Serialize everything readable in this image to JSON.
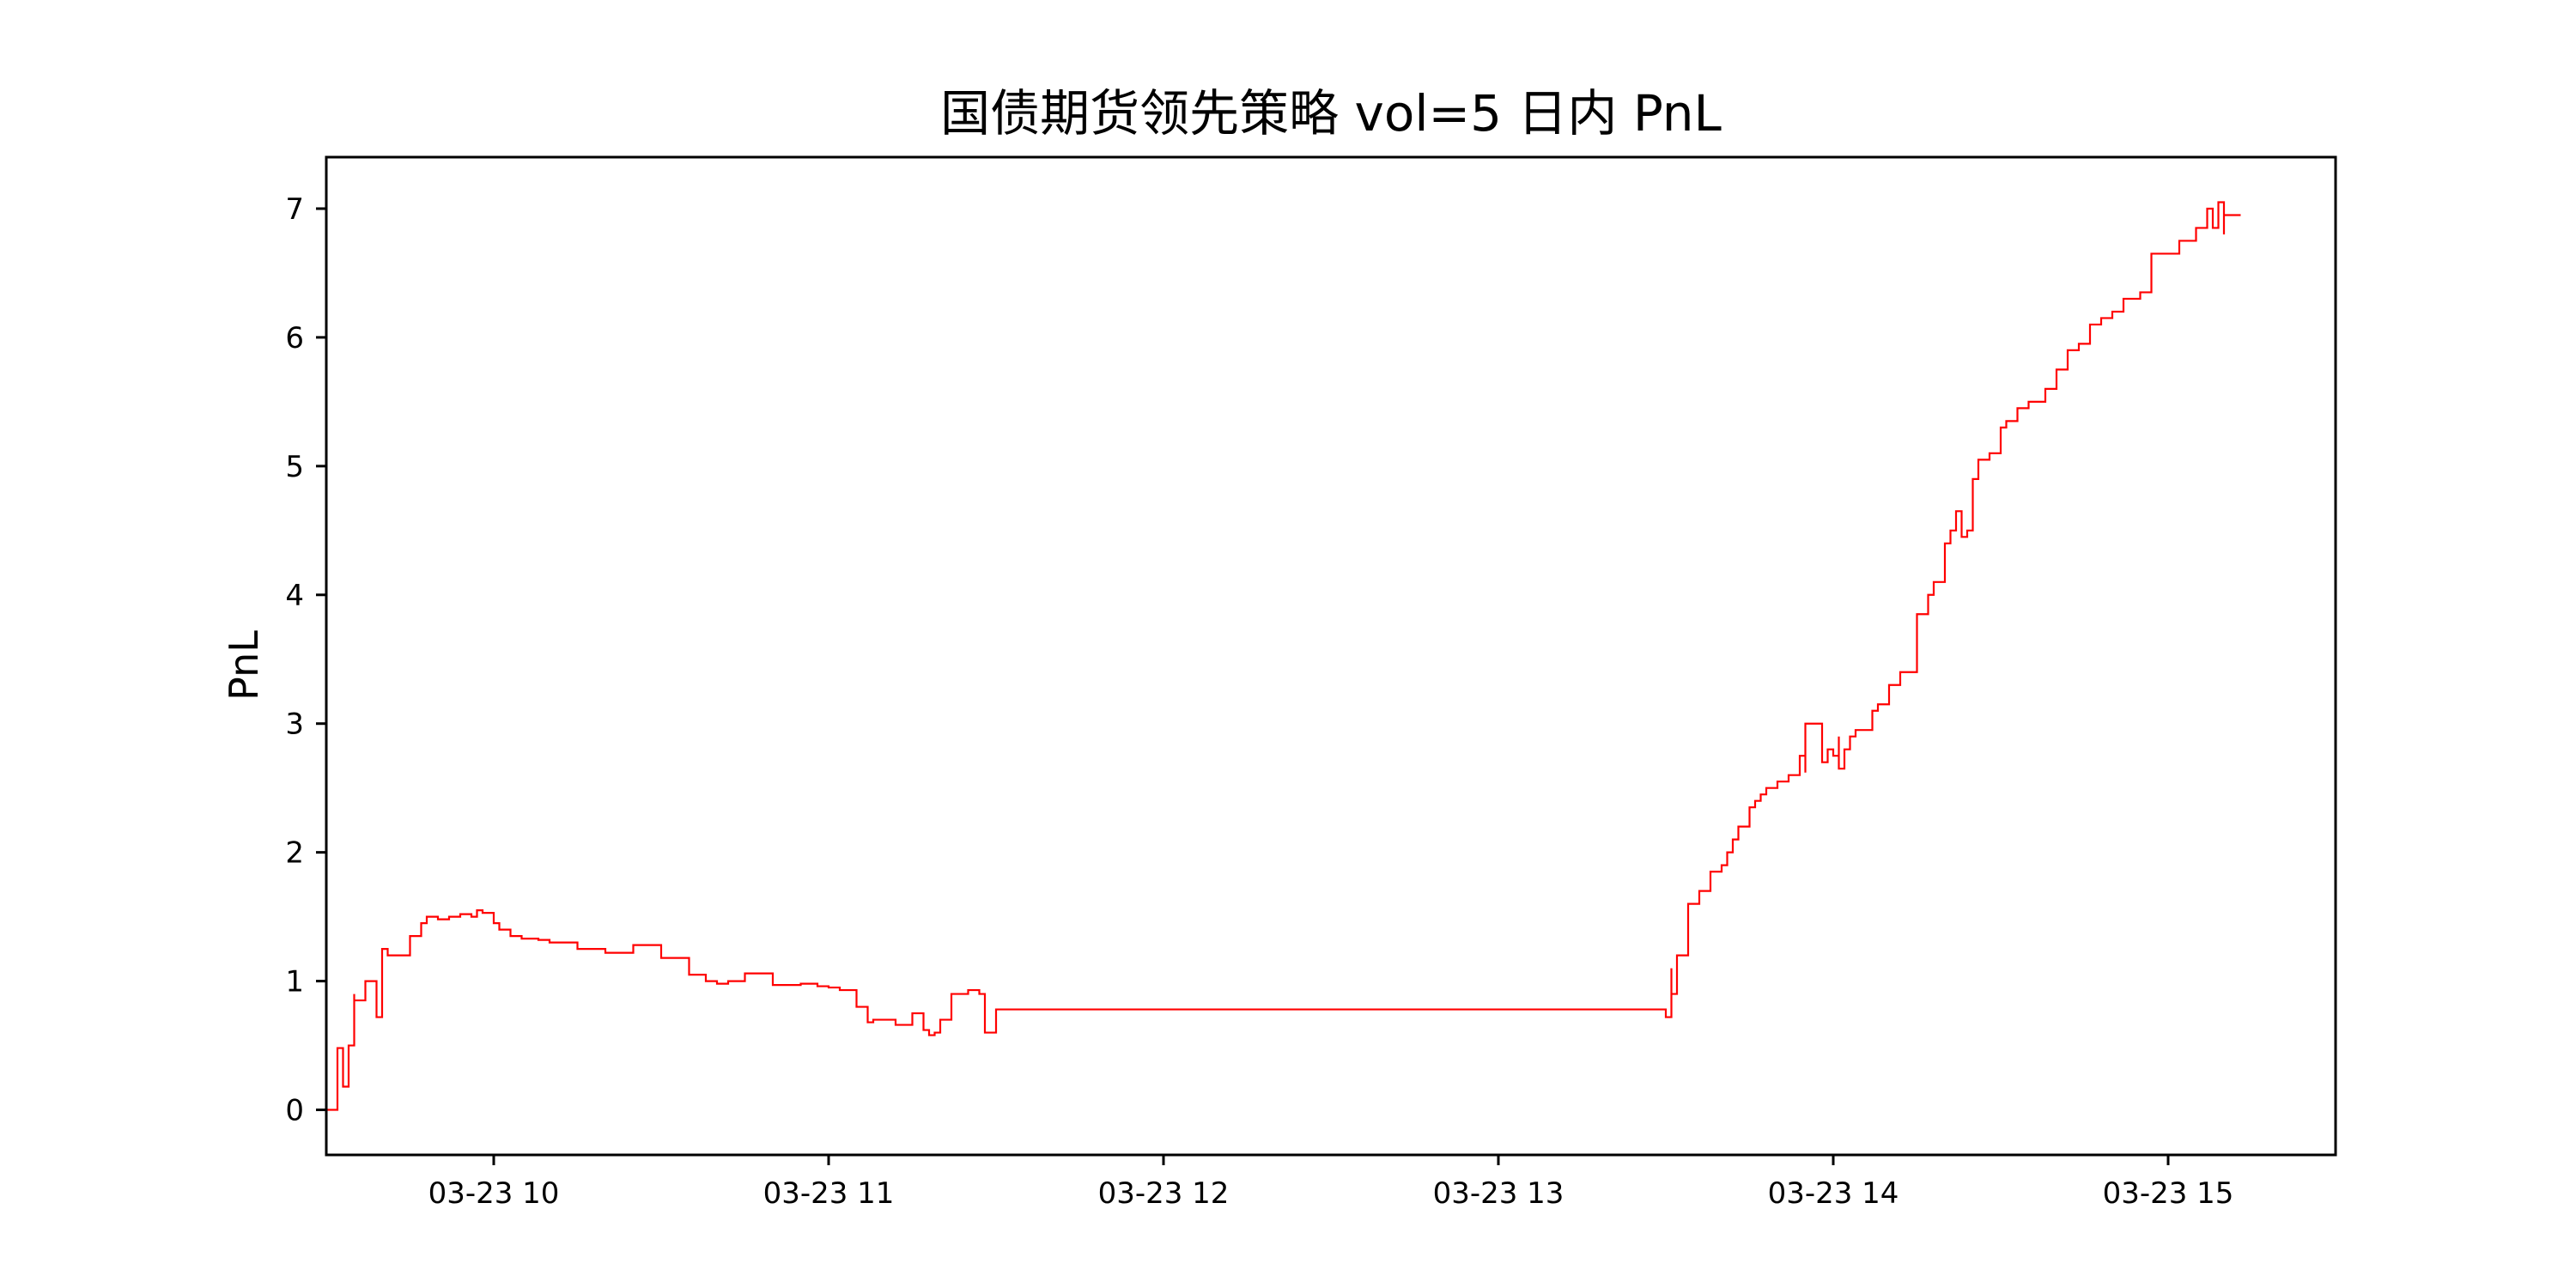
{
  "chart_data": {
    "type": "line",
    "title": "国债期货领先策略 vol=5 日内 PnL",
    "xlabel": "",
    "ylabel": "PnL",
    "x_type": "time",
    "x_date": "2020-03-23",
    "xlim": [
      "09:30",
      "15:30"
    ],
    "ylim": [
      -0.35,
      7.4
    ],
    "grid": false,
    "legend": "none",
    "x_ticks": [
      {
        "time": "10:00",
        "label": "03-23 10"
      },
      {
        "time": "11:00",
        "label": "03-23 11"
      },
      {
        "time": "12:00",
        "label": "03-23 12"
      },
      {
        "time": "13:00",
        "label": "03-23 13"
      },
      {
        "time": "14:00",
        "label": "03-23 14"
      },
      {
        "time": "15:00",
        "label": "03-23 15"
      }
    ],
    "y_ticks": [
      {
        "value": 0,
        "label": "0"
      },
      {
        "value": 1,
        "label": "1"
      },
      {
        "value": 2,
        "label": "2"
      },
      {
        "value": 3,
        "label": "3"
      },
      {
        "value": 4,
        "label": "4"
      },
      {
        "value": 5,
        "label": "5"
      },
      {
        "value": 6,
        "label": "6"
      },
      {
        "value": 7,
        "label": "7"
      }
    ],
    "series": [
      {
        "line_style": "step",
        "color": "#ff0000",
        "x": [
          "09:30",
          "09:32",
          "09:32",
          "09:33",
          "09:34",
          "09:35",
          "09:35",
          "09:36",
          "09:37",
          "09:38",
          "09:39",
          "09:40",
          "09:40",
          "09:41",
          "09:43",
          "09:45",
          "09:47",
          "09:48",
          "09:50",
          "09:52",
          "09:54",
          "09:56",
          "09:57",
          "09:58",
          "10:00",
          "10:01",
          "10:03",
          "10:05",
          "10:08",
          "10:10",
          "10:15",
          "10:20",
          "10:25",
          "10:30",
          "10:33",
          "10:35",
          "10:38",
          "10:40",
          "10:42",
          "10:45",
          "10:50",
          "10:55",
          "10:58",
          "11:00",
          "11:02",
          "11:05",
          "11:07",
          "11:08",
          "11:12",
          "11:15",
          "11:17",
          "11:18",
          "11:19",
          "11:20",
          "11:22",
          "11:25",
          "11:26",
          "11:27",
          "11:28",
          "11:30",
          "13:30",
          "13:30",
          "13:31",
          "13:31",
          "13:32",
          "13:34",
          "13:36",
          "13:38",
          "13:40",
          "13:41",
          "13:42",
          "13:43",
          "13:45",
          "13:46",
          "13:47",
          "13:48",
          "13:50",
          "13:52",
          "13:54",
          "13:55",
          "13:55",
          "13:58",
          "13:59",
          "14:00",
          "14:01",
          "14:01",
          "14:02",
          "14:03",
          "14:04",
          "14:07",
          "14:08",
          "14:10",
          "14:12",
          "14:15",
          "14:17",
          "14:18",
          "14:20",
          "14:21",
          "14:22",
          "14:23",
          "14:24",
          "14:25",
          "14:26",
          "14:28",
          "14:30",
          "14:31",
          "14:33",
          "14:35",
          "14:38",
          "14:40",
          "14:42",
          "14:44",
          "14:46",
          "14:48",
          "14:50",
          "14:52",
          "14:55",
          "14:57",
          "15:00",
          "15:02",
          "15:05",
          "15:07",
          "15:08",
          "15:09",
          "15:10",
          "15:10",
          "15:11",
          "15:12",
          "15:13"
        ],
        "y": [
          0.0,
          0.0,
          0.48,
          0.18,
          0.5,
          0.9,
          0.85,
          0.85,
          1.0,
          1.0,
          0.72,
          1.2,
          1.25,
          1.2,
          1.2,
          1.35,
          1.45,
          1.5,
          1.48,
          1.5,
          1.52,
          1.5,
          1.55,
          1.53,
          1.45,
          1.4,
          1.35,
          1.33,
          1.32,
          1.3,
          1.25,
          1.22,
          1.28,
          1.18,
          1.18,
          1.05,
          1.0,
          0.98,
          1.0,
          1.06,
          0.97,
          0.98,
          0.96,
          0.95,
          0.93,
          0.8,
          0.68,
          0.7,
          0.66,
          0.75,
          0.62,
          0.58,
          0.6,
          0.7,
          0.9,
          0.93,
          0.93,
          0.9,
          0.6,
          0.78,
          0.78,
          0.72,
          1.1,
          0.9,
          1.2,
          1.6,
          1.7,
          1.85,
          1.9,
          2.0,
          2.1,
          2.2,
          2.35,
          2.4,
          2.45,
          2.5,
          2.55,
          2.6,
          2.75,
          2.62,
          3.0,
          2.7,
          2.8,
          2.75,
          2.9,
          2.65,
          2.8,
          2.9,
          2.95,
          3.1,
          3.15,
          3.3,
          3.4,
          3.85,
          4.0,
          4.1,
          4.4,
          4.5,
          4.65,
          4.45,
          4.5,
          4.9,
          5.05,
          5.1,
          5.3,
          5.35,
          5.45,
          5.5,
          5.6,
          5.75,
          5.9,
          5.95,
          6.1,
          6.15,
          6.2,
          6.3,
          6.35,
          6.65,
          6.65,
          6.75,
          6.85,
          7.0,
          6.85,
          7.05,
          6.8,
          6.95,
          6.95,
          6.95,
          6.95
        ]
      }
    ]
  }
}
